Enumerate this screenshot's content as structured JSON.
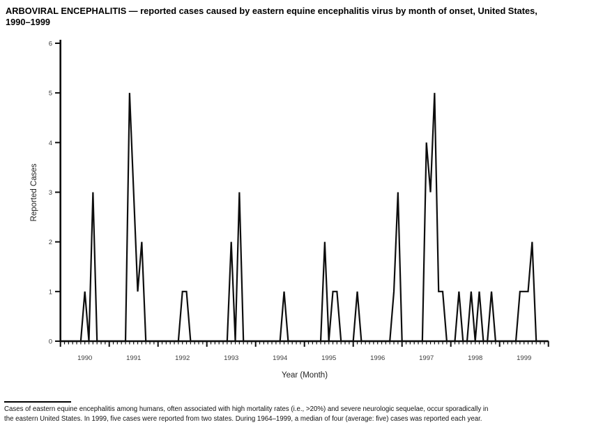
{
  "page": {
    "background": "#ffffff",
    "ink_color": "#0d0d0d"
  },
  "title": {
    "line1": "ARBOVIRAL ENCEPHALITIS — reported cases caused by eastern equine encephalitis virus by month of onset, United States,",
    "line2": "1990–1999"
  },
  "footnote": {
    "line1": "Cases of eastern equine encephalitis among humans, often associated with high mortality rates (i.e., >20%) and severe neurologic sequelae, occur sporadically in",
    "line2": "the eastern United States. In 1999, five cases were reported from two states. During 1964–1999, a median of four (average: five) cases was reported each year."
  },
  "chart_data": {
    "type": "line",
    "title": "ARBOVIRAL ENCEPHALITIS — reported cases caused by eastern equine encephalitis virus by month of onset, United States, 1990–1999",
    "xlabel": "Year (Month)",
    "ylabel": "Reported Cases",
    "ylim": [
      0,
      6
    ],
    "y_ticks": [
      0,
      1,
      2,
      3,
      4,
      5,
      6
    ],
    "grid": false,
    "legend": "none",
    "line_color": "#0d0d0d",
    "x_unit": "month",
    "years": [
      {
        "year": "1990",
        "monthly": [
          0,
          0,
          0,
          0,
          0,
          0,
          1,
          0,
          3,
          0,
          0,
          0
        ]
      },
      {
        "year": "1991",
        "monthly": [
          0,
          0,
          0,
          0,
          0,
          5,
          3,
          1,
          2,
          0,
          0,
          0
        ]
      },
      {
        "year": "1992",
        "monthly": [
          0,
          0,
          0,
          0,
          0,
          0,
          1,
          1,
          0,
          0,
          0,
          0
        ]
      },
      {
        "year": "1993",
        "monthly": [
          0,
          0,
          0,
          0,
          0,
          0,
          2,
          0,
          3,
          0,
          0,
          0
        ]
      },
      {
        "year": "1994",
        "monthly": [
          0,
          0,
          0,
          0,
          0,
          0,
          0,
          1,
          0,
          0,
          0,
          0
        ]
      },
      {
        "year": "1995",
        "monthly": [
          0,
          0,
          0,
          0,
          0,
          2,
          0,
          1,
          1,
          0,
          0,
          0
        ]
      },
      {
        "year": "1996",
        "monthly": [
          0,
          1,
          0,
          0,
          0,
          0,
          0,
          0,
          0,
          0,
          1,
          3
        ]
      },
      {
        "year": "1997",
        "monthly": [
          0,
          0,
          0,
          0,
          0,
          0,
          4,
          3,
          5,
          1,
          1,
          0
        ]
      },
      {
        "year": "1998",
        "monthly": [
          0,
          0,
          1,
          0,
          0,
          1,
          0,
          1,
          0,
          0,
          1,
          0
        ]
      },
      {
        "year": "1999",
        "monthly": [
          0,
          0,
          0,
          0,
          0,
          1,
          1,
          1,
          2,
          0,
          0,
          0
        ]
      }
    ]
  }
}
